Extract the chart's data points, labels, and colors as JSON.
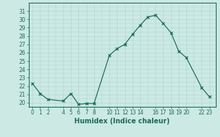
{
  "x": [
    0,
    1,
    2,
    4,
    5,
    6,
    7,
    8,
    10,
    11,
    12,
    13,
    14,
    15,
    16,
    17,
    18,
    19,
    20,
    22,
    23
  ],
  "y": [
    22.3,
    21.1,
    20.4,
    20.2,
    21.1,
    19.8,
    19.9,
    19.9,
    25.7,
    26.5,
    27.0,
    28.2,
    29.3,
    30.3,
    30.5,
    29.5,
    28.4,
    26.2,
    25.4,
    21.8,
    20.7
  ],
  "line_color": "#1a6b5a",
  "marker_color": "#1a6b5a",
  "bg_color": "#cce9e4",
  "grid_color": "#aad4cc",
  "xlabel": "Humidex (Indice chaleur)",
  "ylim": [
    19.5,
    31.8
  ],
  "xlim": [
    -0.5,
    23.8
  ],
  "yticks": [
    20,
    21,
    22,
    23,
    24,
    25,
    26,
    27,
    28,
    29,
    30,
    31
  ],
  "xticks": [
    0,
    1,
    2,
    4,
    5,
    6,
    7,
    8,
    10,
    11,
    12,
    13,
    14,
    16,
    17,
    18,
    19,
    20,
    22,
    23
  ],
  "tick_label_fontsize": 5.5,
  "xlabel_fontsize": 7.0
}
